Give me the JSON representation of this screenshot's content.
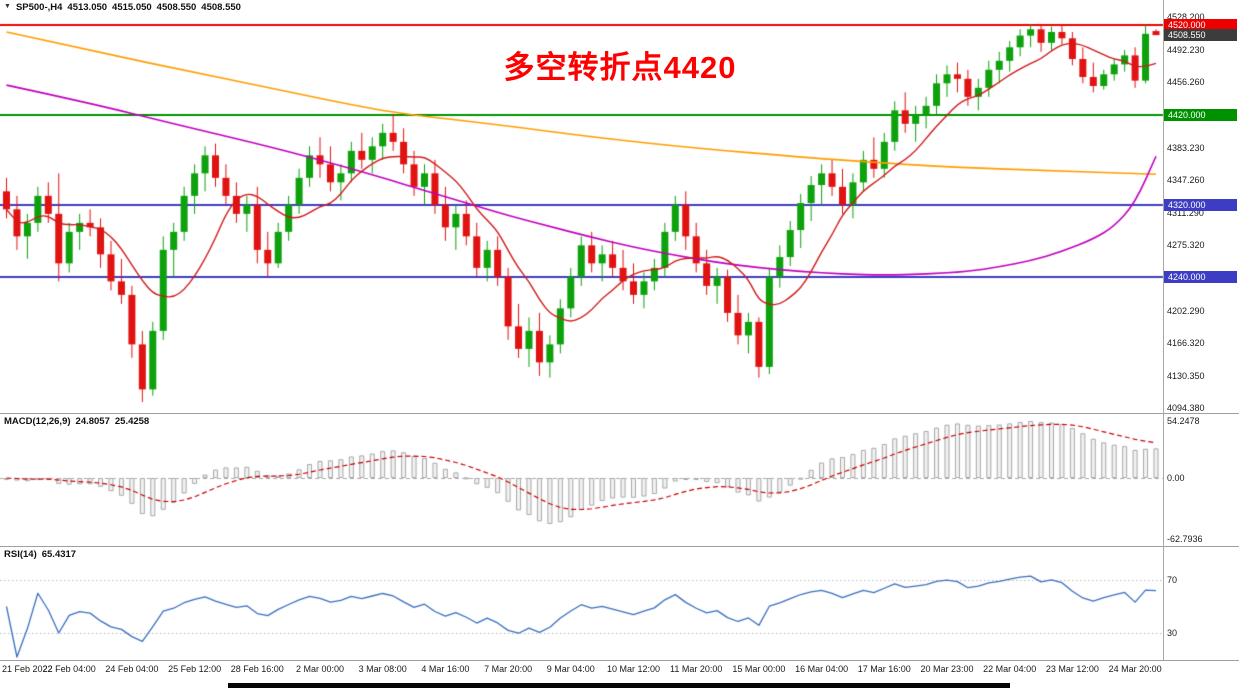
{
  "header": {
    "collapse_glyph": "▼",
    "symbol_period": "SP500-,H4",
    "open": "4513.050",
    "high": "4515.050",
    "low": "4508.550",
    "close": "4508.550"
  },
  "chart_data": {
    "type": "candlestick",
    "symbol": "SP500-",
    "timeframe": "H4",
    "ylim": [
      4091,
      4532
    ],
    "annotation": {
      "text": "多空转折点4420",
      "color": "#ff0000"
    },
    "y_axis": {
      "ticks": [
        "4528.200",
        "4492.230",
        "4456.260",
        "4383.230",
        "4347.260",
        "4311.290",
        "4275.320",
        "4202.290",
        "4166.320",
        "4130.350",
        "4094.380"
      ],
      "price_tags": [
        {
          "text": "4520.000",
          "bg": "#ee0000"
        },
        {
          "text": "4420.000",
          "bg": "#009100"
        },
        {
          "text": "4320.000",
          "bg": "#3d3dc4"
        },
        {
          "text": "4240.000",
          "bg": "#3d3dc4"
        },
        {
          "text": "4508.550",
          "bg": "#3c3c3c"
        }
      ]
    },
    "x_axis": {
      "labels": [
        {
          "i": 0,
          "text": "21 Feb 2022"
        },
        {
          "i": 6,
          "text": "22 Feb 04:00"
        },
        {
          "i": 12,
          "text": "24 Feb 04:00"
        },
        {
          "i": 18,
          "text": "25 Feb 12:00"
        },
        {
          "i": 24,
          "text": "28 Feb 16:00"
        },
        {
          "i": 30,
          "text": "2 Mar 00:00"
        },
        {
          "i": 36,
          "text": "3 Mar 08:00"
        },
        {
          "i": 42,
          "text": "4 Mar 16:00"
        },
        {
          "i": 48,
          "text": "7 Mar 20:00"
        },
        {
          "i": 54,
          "text": "9 Mar 04:00"
        },
        {
          "i": 60,
          "text": "10 Mar 12:00"
        },
        {
          "i": 66,
          "text": "11 Mar 20:00"
        },
        {
          "i": 72,
          "text": "15 Mar 00:00"
        },
        {
          "i": 78,
          "text": "16 Mar 04:00"
        },
        {
          "i": 84,
          "text": "17 Mar 16:00"
        },
        {
          "i": 90,
          "text": "20 Mar 23:00"
        },
        {
          "i": 96,
          "text": "22 Mar 04:00"
        },
        {
          "i": 102,
          "text": "23 Mar 12:00"
        },
        {
          "i": 108,
          "text": "24 Mar 20:00"
        }
      ]
    },
    "hlines": [
      {
        "price": 4520,
        "color": "#ee0000"
      },
      {
        "price": 4420,
        "color": "#009100"
      },
      {
        "price": 4320,
        "color": "#3d3dc4"
      },
      {
        "price": 4240,
        "color": "#3d3dc4"
      }
    ],
    "style": {
      "up": "#0da10d",
      "down": "#e11212",
      "ma_fast": "#cf1a1a",
      "ma_medium": "#bf00bf",
      "ma_slow": "#ff9d00",
      "macd_bar_fill": "#f2f2f2",
      "macd_bar_stroke": "#a9a9a9",
      "macd_signal": "#cc0000",
      "rsi_line": "#3a6fbf",
      "level_line": "#bdbdbd",
      "axis_text": "#1a1a1a"
    },
    "moving_averages": [
      {
        "name": "ma-fast-red",
        "method": "sma_close",
        "period": 8
      },
      {
        "name": "ma-medium-magenta",
        "points": [
          [
            0,
            4453
          ],
          [
            8,
            4433
          ],
          [
            16,
            4410
          ],
          [
            24,
            4388
          ],
          [
            30,
            4370
          ],
          [
            36,
            4350
          ],
          [
            40,
            4336
          ],
          [
            44,
            4322
          ],
          [
            48,
            4308
          ],
          [
            52,
            4296
          ],
          [
            56,
            4284
          ],
          [
            60,
            4273
          ],
          [
            64,
            4264
          ],
          [
            68,
            4256
          ],
          [
            72,
            4250
          ],
          [
            76,
            4246
          ],
          [
            80,
            4243
          ],
          [
            84,
            4242
          ],
          [
            88,
            4243
          ],
          [
            92,
            4246
          ],
          [
            95,
            4251
          ],
          [
            98,
            4258
          ],
          [
            101,
            4268
          ],
          [
            104,
            4282
          ],
          [
            106,
            4296
          ],
          [
            108,
            4322
          ],
          [
            110,
            4374
          ]
        ]
      },
      {
        "name": "ma-slow-orange",
        "points": [
          [
            0,
            4512
          ],
          [
            9,
            4489
          ],
          [
            18,
            4467
          ],
          [
            26,
            4448
          ],
          [
            33,
            4431
          ],
          [
            38,
            4421
          ],
          [
            47,
            4409
          ],
          [
            57,
            4394
          ],
          [
            66,
            4383
          ],
          [
            76,
            4373
          ],
          [
            82,
            4368
          ],
          [
            90,
            4362
          ],
          [
            100,
            4358
          ],
          [
            110,
            4354
          ]
        ]
      }
    ],
    "indicators": {
      "macd": {
        "label": "MACD(12,26,9)",
        "main_value": "24.8057",
        "signal_value": "25.4258",
        "axis_labels": [
          "54.2478",
          "0.00",
          "-62.7936"
        ],
        "fast": 12,
        "slow": 26,
        "signal": 9
      },
      "rsi": {
        "label": "RSI(14)",
        "value": "65.4317",
        "period": 14,
        "levels": [
          70,
          30
        ]
      }
    },
    "candles": [
      [
        4335,
        4350,
        4305,
        4315
      ],
      [
        4315,
        4330,
        4270,
        4285
      ],
      [
        4285,
        4310,
        4260,
        4300
      ],
      [
        4300,
        4340,
        4290,
        4330
      ],
      [
        4330,
        4345,
        4300,
        4310
      ],
      [
        4310,
        4355,
        4235,
        4255
      ],
      [
        4255,
        4300,
        4245,
        4290
      ],
      [
        4290,
        4310,
        4270,
        4300
      ],
      [
        4300,
        4315,
        4285,
        4295
      ],
      [
        4295,
        4305,
        4250,
        4265
      ],
      [
        4265,
        4280,
        4225,
        4235
      ],
      [
        4235,
        4260,
        4210,
        4220
      ],
      [
        4220,
        4230,
        4150,
        4165
      ],
      [
        4165,
        4180,
        4101,
        4115
      ],
      [
        4115,
        4190,
        4108,
        4180
      ],
      [
        4180,
        4285,
        4170,
        4270
      ],
      [
        4270,
        4300,
        4240,
        4290
      ],
      [
        4290,
        4340,
        4280,
        4330
      ],
      [
        4330,
        4365,
        4310,
        4355
      ],
      [
        4355,
        4385,
        4335,
        4375
      ],
      [
        4375,
        4388,
        4340,
        4350
      ],
      [
        4350,
        4365,
        4320,
        4330
      ],
      [
        4330,
        4345,
        4300,
        4310
      ],
      [
        4310,
        4330,
        4290,
        4320
      ],
      [
        4320,
        4340,
        4255,
        4270
      ],
      [
        4270,
        4290,
        4240,
        4255
      ],
      [
        4255,
        4300,
        4250,
        4290
      ],
      [
        4290,
        4330,
        4280,
        4320
      ],
      [
        4320,
        4360,
        4310,
        4350
      ],
      [
        4350,
        4385,
        4340,
        4375
      ],
      [
        4375,
        4395,
        4350,
        4365
      ],
      [
        4365,
        4385,
        4335,
        4345
      ],
      [
        4345,
        4365,
        4325,
        4355
      ],
      [
        4355,
        4390,
        4345,
        4380
      ],
      [
        4380,
        4400,
        4360,
        4370
      ],
      [
        4370,
        4395,
        4355,
        4385
      ],
      [
        4385,
        4410,
        4370,
        4400
      ],
      [
        4400,
        4421,
        4380,
        4390
      ],
      [
        4390,
        4405,
        4355,
        4365
      ],
      [
        4365,
        4380,
        4330,
        4340
      ],
      [
        4340,
        4365,
        4320,
        4355
      ],
      [
        4355,
        4370,
        4310,
        4320
      ],
      [
        4320,
        4340,
        4280,
        4295
      ],
      [
        4295,
        4320,
        4270,
        4310
      ],
      [
        4310,
        4325,
        4275,
        4285
      ],
      [
        4285,
        4300,
        4240,
        4250
      ],
      [
        4250,
        4280,
        4235,
        4270
      ],
      [
        4270,
        4285,
        4230,
        4240
      ],
      [
        4240,
        4250,
        4170,
        4185
      ],
      [
        4185,
        4210,
        4150,
        4160
      ],
      [
        4160,
        4195,
        4140,
        4180
      ],
      [
        4180,
        4200,
        4130,
        4145
      ],
      [
        4145,
        4175,
        4128,
        4165
      ],
      [
        4165,
        4215,
        4155,
        4205
      ],
      [
        4205,
        4250,
        4195,
        4240
      ],
      [
        4240,
        4285,
        4230,
        4275
      ],
      [
        4275,
        4290,
        4245,
        4255
      ],
      [
        4255,
        4275,
        4235,
        4265
      ],
      [
        4265,
        4280,
        4240,
        4250
      ],
      [
        4250,
        4270,
        4225,
        4235
      ],
      [
        4235,
        4255,
        4210,
        4220
      ],
      [
        4220,
        4245,
        4205,
        4235
      ],
      [
        4235,
        4260,
        4225,
        4250
      ],
      [
        4250,
        4300,
        4240,
        4290
      ],
      [
        4290,
        4330,
        4280,
        4320
      ],
      [
        4320,
        4335,
        4270,
        4285
      ],
      [
        4285,
        4300,
        4245,
        4255
      ],
      [
        4255,
        4270,
        4220,
        4230
      ],
      [
        4230,
        4250,
        4210,
        4240
      ],
      [
        4240,
        4248,
        4190,
        4200
      ],
      [
        4200,
        4220,
        4165,
        4175
      ],
      [
        4175,
        4200,
        4155,
        4190
      ],
      [
        4190,
        4195,
        4128,
        4140
      ],
      [
        4140,
        4250,
        4132,
        4240
      ],
      [
        4240,
        4275,
        4228,
        4262
      ],
      [
        4262,
        4302,
        4252,
        4292
      ],
      [
        4292,
        4332,
        4272,
        4322
      ],
      [
        4322,
        4352,
        4302,
        4342
      ],
      [
        4342,
        4365,
        4320,
        4355
      ],
      [
        4355,
        4370,
        4330,
        4340
      ],
      [
        4340,
        4360,
        4310,
        4320
      ],
      [
        4320,
        4355,
        4305,
        4345
      ],
      [
        4345,
        4380,
        4335,
        4370
      ],
      [
        4370,
        4395,
        4350,
        4360
      ],
      [
        4360,
        4400,
        4350,
        4390
      ],
      [
        4390,
        4435,
        4380,
        4425
      ],
      [
        4425,
        4445,
        4400,
        4410
      ],
      [
        4410,
        4430,
        4390,
        4420
      ],
      [
        4420,
        4440,
        4405,
        4430
      ],
      [
        4430,
        4465,
        4420,
        4455
      ],
      [
        4455,
        4475,
        4440,
        4465
      ],
      [
        4465,
        4478,
        4445,
        4460
      ],
      [
        4460,
        4470,
        4430,
        4440
      ],
      [
        4440,
        4460,
        4425,
        4450
      ],
      [
        4450,
        4480,
        4440,
        4470
      ],
      [
        4470,
        4490,
        4455,
        4480
      ],
      [
        4480,
        4502,
        4468,
        4495
      ],
      [
        4495,
        4515,
        4485,
        4508
      ],
      [
        4508,
        4521,
        4495,
        4515
      ],
      [
        4515,
        4520,
        4490,
        4500
      ],
      [
        4500,
        4518,
        4492,
        4512
      ],
      [
        4512,
        4520,
        4498,
        4505
      ],
      [
        4505,
        4512,
        4475,
        4482
      ],
      [
        4482,
        4495,
        4455,
        4462
      ],
      [
        4462,
        4478,
        4445,
        4452
      ],
      [
        4452,
        4470,
        4448,
        4465
      ],
      [
        4465,
        4482,
        4458,
        4476
      ],
      [
        4476,
        4492,
        4468,
        4486
      ],
      [
        4486,
        4495,
        4450,
        4458
      ],
      [
        4458,
        4520,
        4455,
        4510
      ],
      [
        4513.05,
        4515.05,
        4508.55,
        4508.55
      ]
    ]
  }
}
